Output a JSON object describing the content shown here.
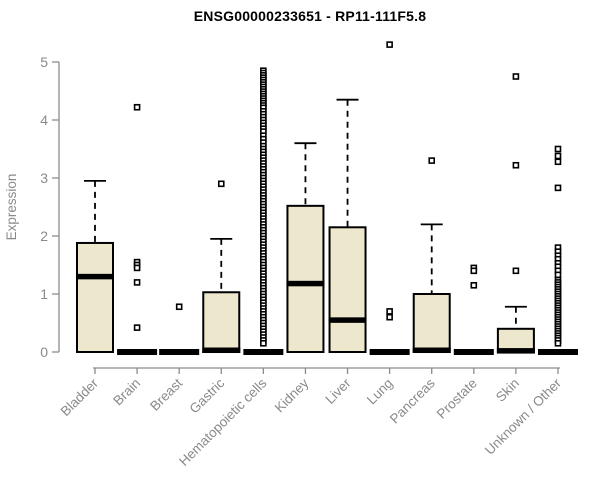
{
  "chart_data": {
    "type": "boxplot",
    "title": "ENSG00000233651 - RP11-111F5.8",
    "xlabel": "",
    "ylabel": "Expression",
    "ylim": [
      0,
      5.35
    ],
    "y_ticks": [
      0,
      1,
      2,
      3,
      4,
      5
    ],
    "grid": false,
    "legend": "none",
    "box_fill_color": "#ede7cd",
    "box_stroke_color": "#000000",
    "axis_color": "#8c8c8c",
    "label_color": "#8a8a8a",
    "title_color": "#000000",
    "categories": [
      "Bladder",
      "Brain",
      "Breast",
      "Gastric",
      "Hematopoietic cells",
      "Kidney",
      "Liver",
      "Lung",
      "Pancreas",
      "Prostate",
      "Skin",
      "Unknown / Other"
    ],
    "series": [
      {
        "category": "Bladder",
        "q1": 0,
        "median": 1.3,
        "q3": 1.88,
        "whisker_low": 0,
        "whisker_high": 2.95,
        "outliers": []
      },
      {
        "category": "Brain",
        "q1": 0,
        "median": 0,
        "q3": 0,
        "whisker_low": 0,
        "whisker_high": 0,
        "outliers": [
          4.22,
          1.55,
          1.5,
          1.45,
          1.2,
          0.42
        ]
      },
      {
        "category": "Breast",
        "q1": 0,
        "median": 0,
        "q3": 0,
        "whisker_low": 0,
        "whisker_high": 0,
        "outliers": [
          0.78
        ]
      },
      {
        "category": "Gastric",
        "q1": 0,
        "median": 0.03,
        "q3": 1.03,
        "whisker_low": 0,
        "whisker_high": 1.95,
        "outliers": [
          2.9
        ]
      },
      {
        "category": "Hematopoietic cells",
        "q1": 0,
        "median": 0,
        "q3": 0,
        "whisker_low": 0,
        "whisker_high": 0,
        "outliers": [
          4.85,
          4.81,
          4.77,
          4.73,
          4.69,
          4.65,
          4.61,
          4.57,
          4.53,
          4.49,
          4.45,
          4.41,
          4.37,
          4.33,
          4.29,
          4.25,
          4.21,
          4.15,
          4.1,
          4.05,
          4.0,
          3.95,
          3.9,
          3.85,
          3.8,
          3.73,
          3.67,
          3.61,
          3.55,
          3.5,
          3.45,
          3.4,
          3.35,
          3.3,
          3.25,
          3.2,
          3.15,
          3.1,
          3.05,
          3.0,
          2.95,
          2.9,
          2.85,
          2.8,
          2.75,
          2.7,
          2.65,
          2.6,
          2.55,
          2.5,
          2.45,
          2.4,
          2.35,
          2.3,
          2.25,
          2.2,
          2.15,
          2.1,
          2.05,
          2.0,
          1.95,
          1.9,
          1.85,
          1.8,
          1.75,
          1.7,
          1.65,
          1.6,
          1.55,
          1.5,
          1.45,
          1.4,
          1.35,
          1.3,
          1.25,
          1.2,
          1.15,
          1.1,
          1.05,
          1.0,
          0.95,
          0.9,
          0.85,
          0.8,
          0.75,
          0.7,
          0.65,
          0.6,
          0.55,
          0.5,
          0.45,
          0.4,
          0.35,
          0.3,
          0.25,
          0.2,
          0.15
        ]
      },
      {
        "category": "Kidney",
        "q1": 0,
        "median": 1.18,
        "q3": 2.52,
        "whisker_low": 0,
        "whisker_high": 3.6,
        "outliers": []
      },
      {
        "category": "Liver",
        "q1": 0,
        "median": 0.55,
        "q3": 2.15,
        "whisker_low": 0,
        "whisker_high": 4.35,
        "outliers": []
      },
      {
        "category": "Lung",
        "q1": 0,
        "median": 0,
        "q3": 0,
        "whisker_low": 0,
        "whisker_high": 0,
        "outliers": [
          5.3,
          0.7,
          0.6
        ]
      },
      {
        "category": "Pancreas",
        "q1": 0,
        "median": 0.03,
        "q3": 1.0,
        "whisker_low": 0,
        "whisker_high": 2.2,
        "outliers": [
          3.3
        ]
      },
      {
        "category": "Prostate",
        "q1": 0,
        "median": 0,
        "q3": 0,
        "whisker_low": 0,
        "whisker_high": 0,
        "outliers": [
          1.45,
          1.4,
          1.15
        ]
      },
      {
        "category": "Skin",
        "q1": 0,
        "median": 0.02,
        "q3": 0.4,
        "whisker_low": 0,
        "whisker_high": 0.78,
        "outliers": [
          4.75,
          3.22,
          1.4
        ]
      },
      {
        "category": "Unknown / Other",
        "q1": 0,
        "median": 0,
        "q3": 0,
        "whisker_low": 0,
        "whisker_high": 0,
        "outliers": [
          3.5,
          3.38,
          3.28,
          2.83,
          1.8,
          1.73,
          1.66,
          1.6,
          1.53,
          1.47,
          1.4,
          1.33,
          1.24,
          1.2,
          1.16,
          1.12,
          1.08,
          1.04,
          1.0,
          0.96,
          0.92,
          0.88,
          0.84,
          0.8,
          0.76,
          0.72,
          0.68,
          0.64,
          0.6,
          0.56,
          0.52,
          0.48,
          0.44,
          0.4,
          0.36,
          0.32,
          0.28,
          0.24,
          0.2,
          0.15
        ]
      }
    ]
  }
}
